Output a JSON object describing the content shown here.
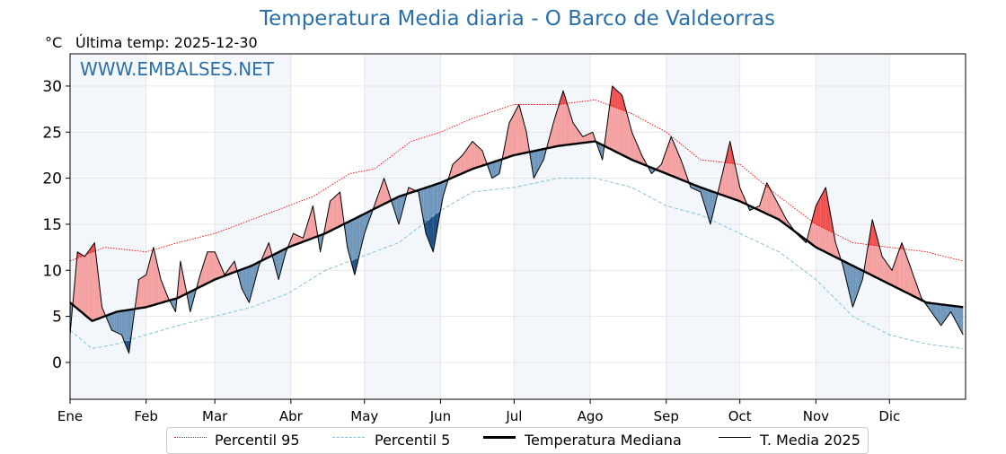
{
  "chart_data": {
    "type": "line",
    "title": "Temperatura Media diaria - O Barco de Valdeorras",
    "unit": "°C",
    "last_temp_label": "Última temp: 2025-12-30",
    "watermark": "WWW.EMBALSES.NET",
    "ylim": [
      -4,
      33.5
    ],
    "yticks": [
      0,
      5,
      10,
      15,
      20,
      25,
      30
    ],
    "months": [
      "Ene",
      "Feb",
      "Mar",
      "Abr",
      "May",
      "Jun",
      "Jul",
      "Ago",
      "Sep",
      "Oct",
      "Nov",
      "Dic"
    ],
    "grid": true,
    "legend_position": "bottom-center",
    "colors": {
      "title": "#2a6fa8",
      "p95": "#ff0000",
      "p5": "#7fc4d6",
      "median": "#000000",
      "current": "#000000",
      "above_fill": "#f5a0a0",
      "above_strong": "#ef5050",
      "below_fill": "#6f97bc",
      "below_strong": "#1f4f86",
      "month_band": "#f3f7fc"
    },
    "series": [
      {
        "name": "Percentil 95",
        "style": "dotted",
        "keypoints": [
          [
            1,
            11
          ],
          [
            15,
            12.5
          ],
          [
            32,
            12
          ],
          [
            45,
            13
          ],
          [
            60,
            14
          ],
          [
            80,
            16
          ],
          [
            100,
            18
          ],
          [
            115,
            20.5
          ],
          [
            125,
            21
          ],
          [
            140,
            24
          ],
          [
            152,
            25
          ],
          [
            165,
            26.5
          ],
          [
            182,
            28
          ],
          [
            200,
            28
          ],
          [
            215,
            28.5
          ],
          [
            230,
            27
          ],
          [
            244,
            25
          ],
          [
            258,
            22
          ],
          [
            274,
            21.5
          ],
          [
            290,
            18
          ],
          [
            305,
            15
          ],
          [
            320,
            13
          ],
          [
            335,
            12.5
          ],
          [
            350,
            12
          ],
          [
            365,
            11
          ]
        ]
      },
      {
        "name": "Percentil 5",
        "style": "dashed",
        "keypoints": [
          [
            1,
            3.5
          ],
          [
            10,
            1.5
          ],
          [
            20,
            2
          ],
          [
            32,
            3
          ],
          [
            45,
            4
          ],
          [
            60,
            5
          ],
          [
            75,
            6
          ],
          [
            90,
            7.5
          ],
          [
            105,
            10
          ],
          [
            120,
            11.5
          ],
          [
            135,
            13
          ],
          [
            152,
            16.5
          ],
          [
            165,
            18.5
          ],
          [
            182,
            19
          ],
          [
            200,
            20
          ],
          [
            215,
            20
          ],
          [
            230,
            19
          ],
          [
            244,
            17
          ],
          [
            258,
            16
          ],
          [
            274,
            14
          ],
          [
            290,
            12
          ],
          [
            305,
            9
          ],
          [
            320,
            5
          ],
          [
            335,
            3
          ],
          [
            350,
            2
          ],
          [
            365,
            1.5
          ]
        ]
      },
      {
        "name": "Temperatura Mediana",
        "style": "bold",
        "keypoints": [
          [
            1,
            6.5
          ],
          [
            10,
            4.5
          ],
          [
            20,
            5.5
          ],
          [
            32,
            6
          ],
          [
            45,
            7
          ],
          [
            60,
            9
          ],
          [
            75,
            10.5
          ],
          [
            90,
            12.5
          ],
          [
            105,
            14
          ],
          [
            120,
            16
          ],
          [
            135,
            18
          ],
          [
            152,
            19.5
          ],
          [
            165,
            21
          ],
          [
            182,
            22.5
          ],
          [
            200,
            23.5
          ],
          [
            215,
            24
          ],
          [
            230,
            22
          ],
          [
            244,
            20.5
          ],
          [
            258,
            19
          ],
          [
            274,
            17.5
          ],
          [
            290,
            15.5
          ],
          [
            305,
            12.5
          ],
          [
            320,
            10.5
          ],
          [
            335,
            8.5
          ],
          [
            350,
            6.5
          ],
          [
            365,
            6
          ]
        ]
      },
      {
        "name": "T. Media 2025",
        "style": "thin",
        "keypoints": [
          [
            1,
            3
          ],
          [
            4,
            12
          ],
          [
            7,
            11.5
          ],
          [
            11,
            13
          ],
          [
            14,
            6
          ],
          [
            18,
            3.5
          ],
          [
            22,
            3
          ],
          [
            25,
            1
          ],
          [
            29,
            9
          ],
          [
            32,
            9.5
          ],
          [
            35,
            12.5
          ],
          [
            38,
            9
          ],
          [
            41,
            7
          ],
          [
            44,
            5.5
          ],
          [
            46,
            11
          ],
          [
            50,
            5.5
          ],
          [
            54,
            9.5
          ],
          [
            57,
            12
          ],
          [
            60,
            12
          ],
          [
            64,
            9.5
          ],
          [
            68,
            11
          ],
          [
            71,
            8
          ],
          [
            74,
            6.5
          ],
          [
            78,
            10.5
          ],
          [
            82,
            13
          ],
          [
            86,
            9
          ],
          [
            89,
            12
          ],
          [
            92,
            14
          ],
          [
            96,
            13.5
          ],
          [
            100,
            17
          ],
          [
            103,
            12
          ],
          [
            107,
            17.5
          ],
          [
            111,
            18.5
          ],
          [
            114,
            12.5
          ],
          [
            117,
            9.5
          ],
          [
            121,
            14
          ],
          [
            125,
            17
          ],
          [
            129,
            20
          ],
          [
            132,
            17.5
          ],
          [
            135,
            15
          ],
          [
            139,
            19
          ],
          [
            143,
            18.5
          ],
          [
            146,
            14
          ],
          [
            149,
            12
          ],
          [
            153,
            18
          ],
          [
            157,
            21.5
          ],
          [
            161,
            22.5
          ],
          [
            165,
            24
          ],
          [
            169,
            23
          ],
          [
            173,
            20
          ],
          [
            176,
            20.5
          ],
          [
            180,
            26
          ],
          [
            184,
            28
          ],
          [
            187,
            25
          ],
          [
            190,
            20
          ],
          [
            194,
            22
          ],
          [
            198,
            26
          ],
          [
            202,
            29.5
          ],
          [
            206,
            26
          ],
          [
            210,
            24.5
          ],
          [
            214,
            25
          ],
          [
            218,
            22
          ],
          [
            222,
            30
          ],
          [
            226,
            29
          ],
          [
            230,
            25
          ],
          [
            234,
            22.5
          ],
          [
            238,
            20.5
          ],
          [
            242,
            21.5
          ],
          [
            246,
            24.5
          ],
          [
            250,
            22
          ],
          [
            254,
            19
          ],
          [
            258,
            18.5
          ],
          [
            262,
            15
          ],
          [
            266,
            19.5
          ],
          [
            270,
            24
          ],
          [
            274,
            19
          ],
          [
            278,
            16.5
          ],
          [
            282,
            17
          ],
          [
            285,
            19.5
          ],
          [
            289,
            17.5
          ],
          [
            293,
            15.5
          ],
          [
            297,
            14
          ],
          [
            301,
            13
          ],
          [
            305,
            17
          ],
          [
            309,
            19
          ],
          [
            313,
            13
          ],
          [
            316,
            10.5
          ],
          [
            320,
            6
          ],
          [
            324,
            9
          ],
          [
            328,
            15.5
          ],
          [
            332,
            11.5
          ],
          [
            336,
            10
          ],
          [
            340,
            13
          ],
          [
            344,
            10
          ],
          [
            348,
            7
          ],
          [
            352,
            5.5
          ],
          [
            356,
            4
          ],
          [
            360,
            5.5
          ],
          [
            363,
            4
          ],
          [
            365,
            3
          ]
        ]
      }
    ]
  },
  "legend": {
    "p95": "Percentil 95",
    "p5": "Percentil 5",
    "median": "Temperatura Mediana",
    "current": "T. Media 2025"
  }
}
